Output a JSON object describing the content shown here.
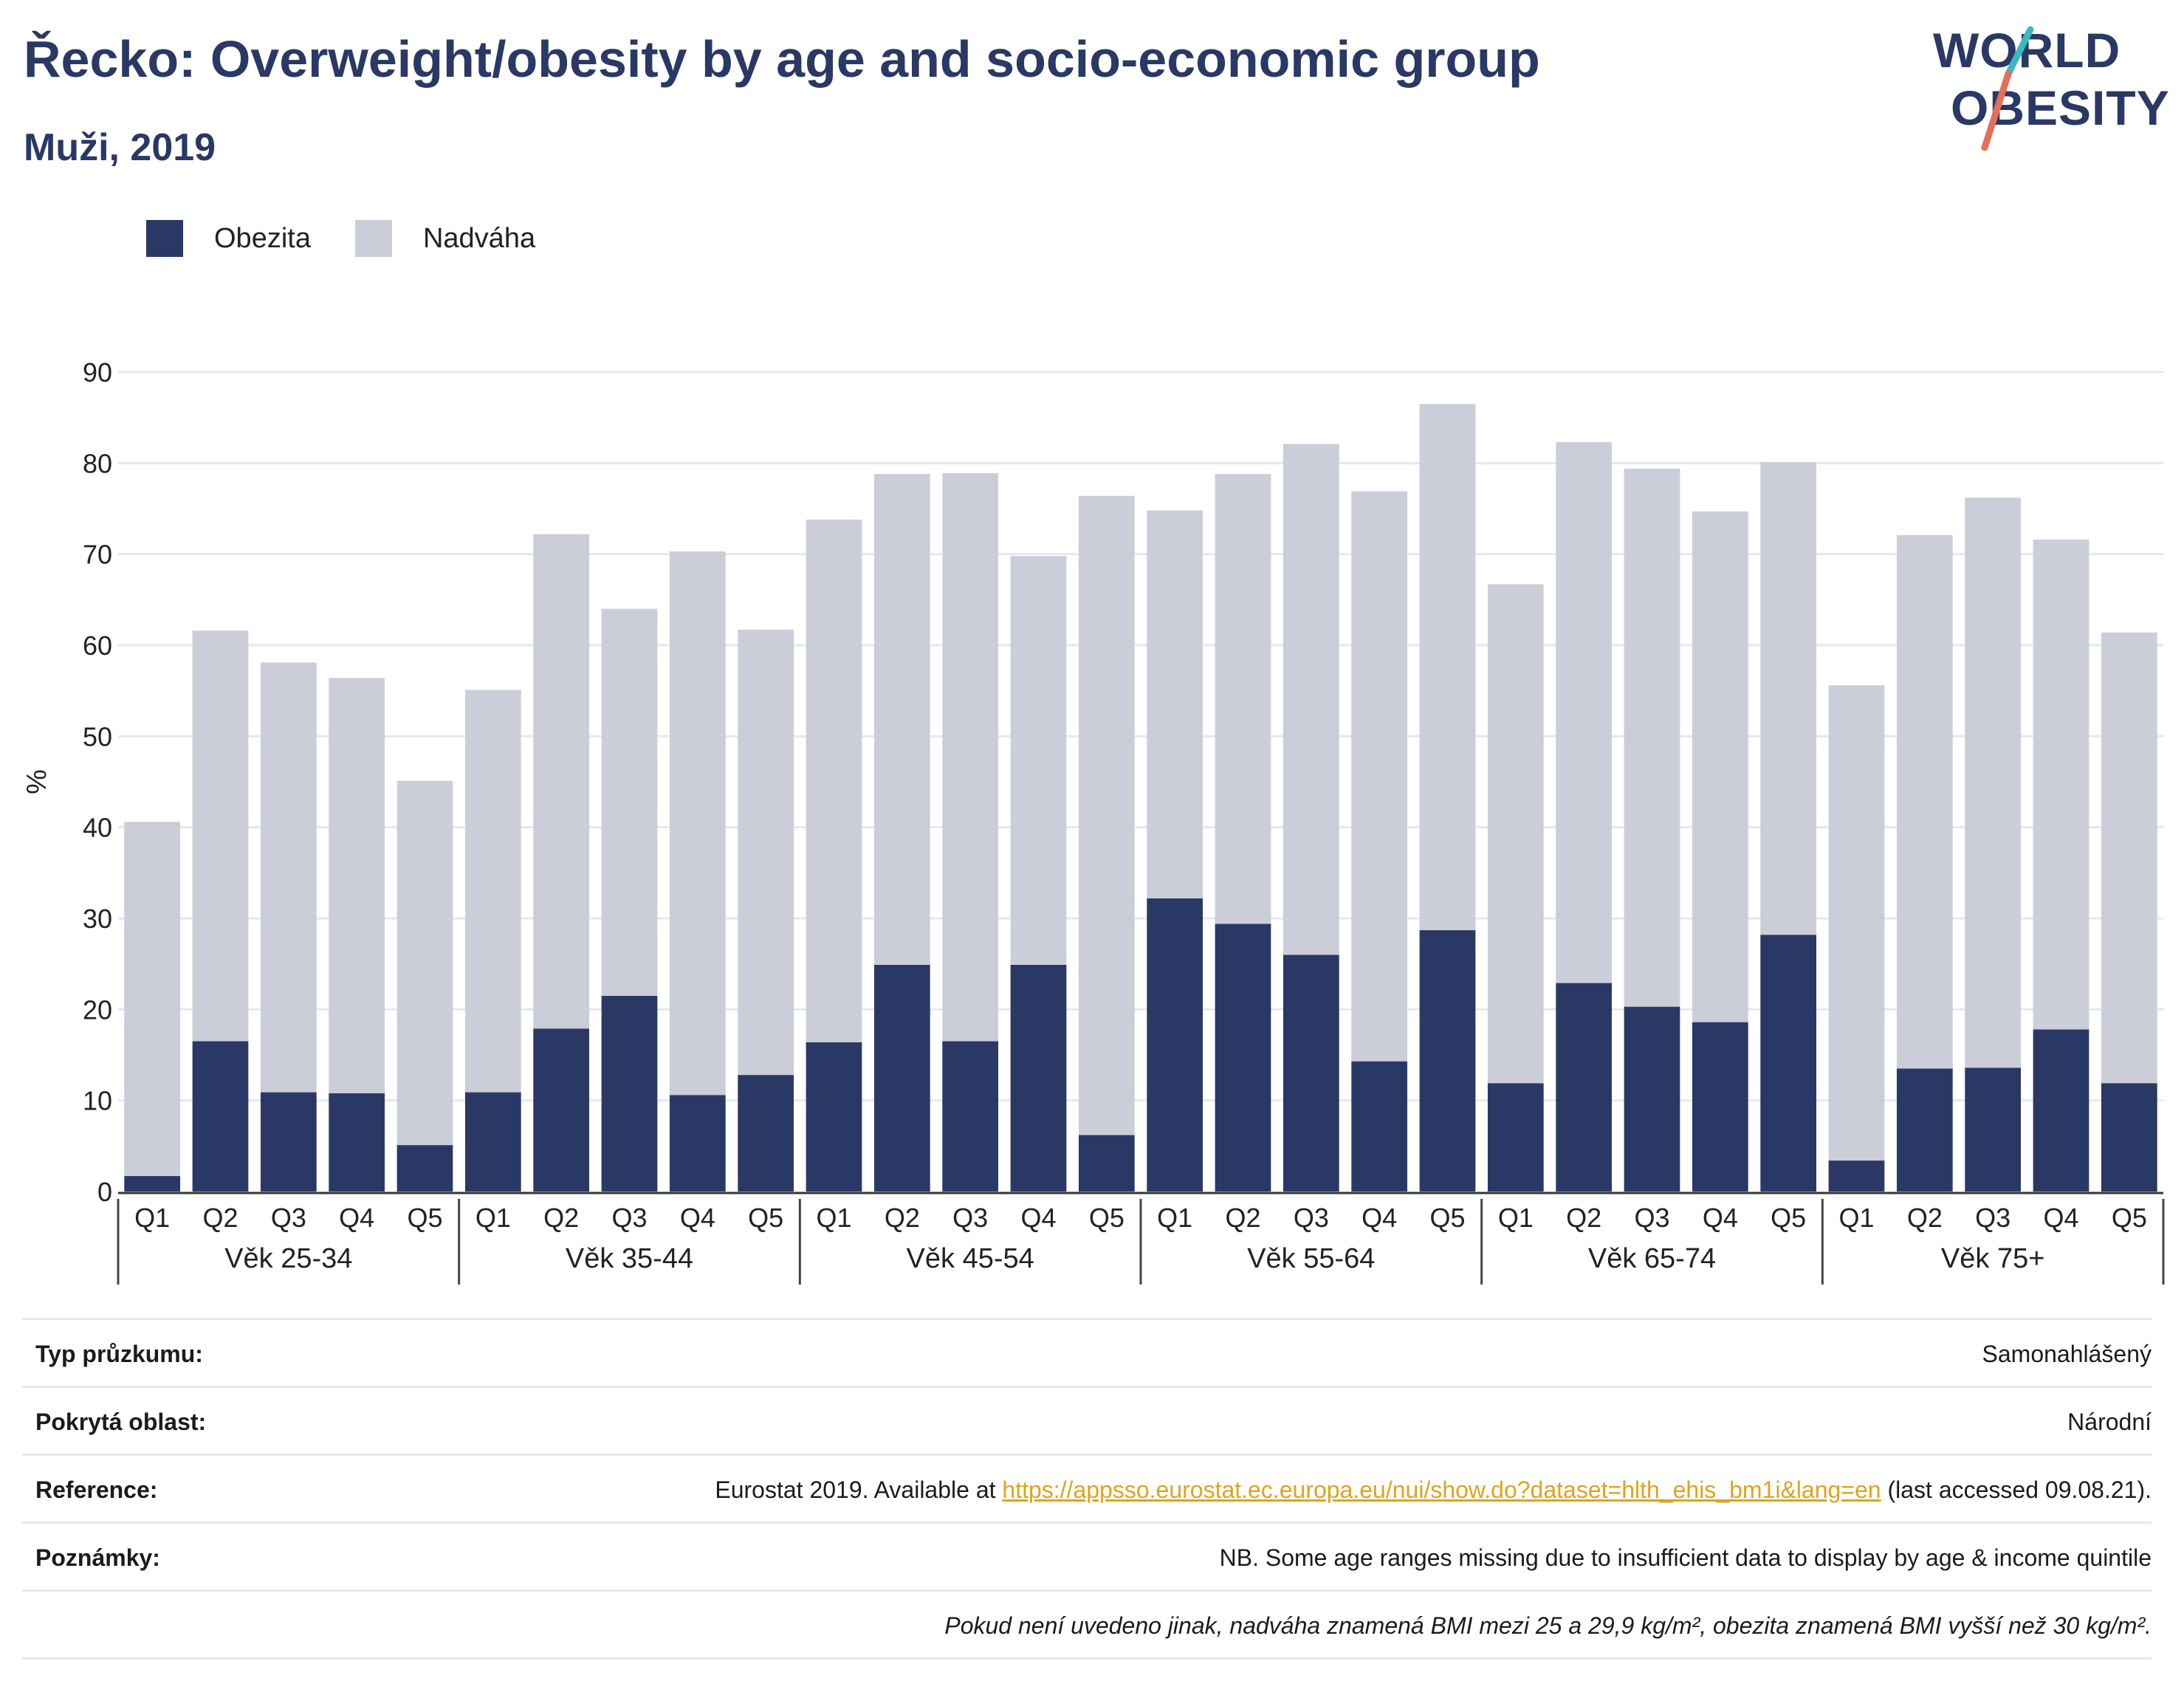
{
  "header": {
    "title": "Řecko: Overweight/obesity by age and socio-economic group",
    "subtitle": "Muži, 2019"
  },
  "logo": {
    "line1": "WORLD",
    "line2": "OBESITY"
  },
  "chart_data": {
    "type": "bar",
    "stacked": true,
    "ylabel": "%",
    "ylim": [
      0,
      90
    ],
    "yticks": [
      0,
      10,
      20,
      30,
      40,
      50,
      60,
      70,
      80,
      90
    ],
    "grid": true,
    "legend_position": "top-left",
    "groups": [
      {
        "label": "Věk 25-34",
        "categories": [
          "Q1",
          "Q2",
          "Q3",
          "Q4",
          "Q5"
        ]
      },
      {
        "label": "Věk 35-44",
        "categories": [
          "Q1",
          "Q2",
          "Q3",
          "Q4",
          "Q5"
        ]
      },
      {
        "label": "Věk 45-54",
        "categories": [
          "Q1",
          "Q2",
          "Q3",
          "Q4",
          "Q5"
        ]
      },
      {
        "label": "Věk 55-64",
        "categories": [
          "Q1",
          "Q2",
          "Q3",
          "Q4",
          "Q5"
        ]
      },
      {
        "label": "Věk 65-74",
        "categories": [
          "Q1",
          "Q2",
          "Q3",
          "Q4",
          "Q5"
        ]
      },
      {
        "label": "Věk 75+",
        "categories": [
          "Q1",
          "Q2",
          "Q3",
          "Q4",
          "Q5"
        ]
      }
    ],
    "series": [
      {
        "name": "Obezita",
        "color": "#2a3865",
        "values": [
          1.7,
          16.5,
          10.9,
          10.8,
          5.1,
          10.9,
          17.9,
          21.5,
          10.6,
          12.8,
          16.4,
          24.9,
          16.5,
          24.9,
          6.2,
          32.2,
          29.4,
          26.0,
          14.3,
          28.7,
          11.9,
          22.9,
          20.3,
          18.6,
          28.2,
          3.4,
          13.5,
          13.6,
          17.8,
          11.9
        ]
      },
      {
        "name": "Nadváha",
        "color": "#cbcdd8",
        "values": [
          38.9,
          45.1,
          47.2,
          45.6,
          40.0,
          44.2,
          54.3,
          42.5,
          59.7,
          48.9,
          57.4,
          53.9,
          62.4,
          44.9,
          70.2,
          42.6,
          49.4,
          56.1,
          62.6,
          57.8,
          54.8,
          59.4,
          59.1,
          56.1,
          51.9,
          52.2,
          58.6,
          62.6,
          53.8,
          49.5
        ]
      }
    ]
  },
  "info": {
    "survey_type_label": "Typ průzkumu:",
    "survey_type_value": "Samonahlášený",
    "area_label": "Pokrytá oblast:",
    "area_value": "Národní",
    "reference_label": "Reference:",
    "reference_prefix": "Eurostat 2019. Available at ",
    "reference_link": "https://appsso.eurostat.ec.europa.eu/nui/show.do?dataset=hlth_ehis_bm1i&lang=en",
    "reference_suffix": " (last accessed 09.08.21).",
    "notes_label": "Poznámky:",
    "notes_value": "NB. Some age ranges missing due to insufficient data to display by age & income quintile",
    "definition": "Pokud není uvedeno jinak, nadváha znamená BMI mezi 25 a 29,9 kg/m², obezita znamená BMI vyšší než 30 kg/m²."
  }
}
